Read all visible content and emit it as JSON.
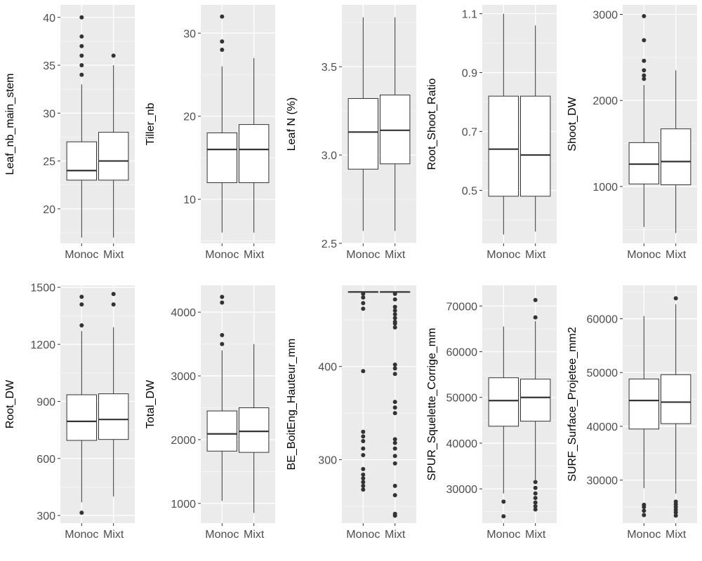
{
  "chart_data": [
    {
      "type": "boxplot",
      "ylabel": "Leaf_nb_main_stem",
      "ylim": [
        16.4,
        41.3
      ],
      "yticks": [
        20,
        25,
        30,
        35,
        40
      ],
      "ytick_labels": [
        "20",
        "25",
        "30",
        "35",
        "40"
      ],
      "categories": [
        "Monoc",
        "Mixt"
      ],
      "boxes": [
        {
          "q1": 23,
          "median": 24,
          "q3": 27,
          "whisker_low": 17,
          "whisker_high": 33,
          "outliers": [
            34,
            35,
            36,
            37,
            38,
            40
          ]
        },
        {
          "q1": 23,
          "median": 25,
          "q3": 28,
          "whisker_low": 17,
          "whisker_high": 35,
          "outliers": [
            36
          ]
        }
      ]
    },
    {
      "type": "boxplot",
      "ylabel": "Tiller_nb",
      "ylim": [
        4.7,
        33.4
      ],
      "yticks": [
        10,
        20,
        30
      ],
      "ytick_labels": [
        "10",
        "20",
        "30"
      ],
      "categories": [
        "Monoc",
        "Mixt"
      ],
      "boxes": [
        {
          "q1": 12,
          "median": 16,
          "q3": 18,
          "whisker_low": 6,
          "whisker_high": 26,
          "outliers": [
            28,
            29,
            32
          ]
        },
        {
          "q1": 12,
          "median": 16,
          "q3": 19,
          "whisker_low": 6,
          "whisker_high": 27,
          "outliers": []
        }
      ]
    },
    {
      "type": "boxplot",
      "ylabel": "Leaf N (%)",
      "ylim": [
        2.5,
        3.85
      ],
      "yticks": [
        2.5,
        3.0,
        3.5
      ],
      "ytick_labels": [
        "2.5",
        "3.0",
        "3.5"
      ],
      "categories": [
        "Monoc",
        "Mixt"
      ],
      "boxes": [
        {
          "q1": 2.92,
          "median": 3.13,
          "q3": 3.32,
          "whisker_low": 2.57,
          "whisker_high": 3.78,
          "outliers": []
        },
        {
          "q1": 2.95,
          "median": 3.14,
          "q3": 3.34,
          "whisker_low": 2.57,
          "whisker_high": 3.78,
          "outliers": []
        }
      ]
    },
    {
      "type": "boxplot",
      "ylabel": "Root_Shoot_Ratio",
      "ylim": [
        0.32,
        1.13
      ],
      "yticks": [
        0.5,
        0.7,
        0.9,
        1.1
      ],
      "ytick_labels": [
        "0.5",
        "0.7",
        "0.9",
        "1.1"
      ],
      "categories": [
        "Monoc",
        "Mixt"
      ],
      "boxes": [
        {
          "q1": 0.48,
          "median": 0.64,
          "q3": 0.82,
          "whisker_low": 0.35,
          "whisker_high": 1.1,
          "outliers": []
        },
        {
          "q1": 0.48,
          "median": 0.62,
          "q3": 0.82,
          "whisker_low": 0.36,
          "whisker_high": 1.06,
          "outliers": []
        }
      ]
    },
    {
      "type": "boxplot",
      "ylabel": "Shoot_DW",
      "ylim": [
        340,
        3110
      ],
      "yticks": [
        1000,
        2000,
        3000
      ],
      "ytick_labels": [
        "1000",
        "2000",
        "3000"
      ],
      "categories": [
        "Monoc",
        "Mixt"
      ],
      "boxes": [
        {
          "q1": 1030,
          "median": 1260,
          "q3": 1510,
          "whisker_low": 530,
          "whisker_high": 2180,
          "outliers": [
            2250,
            2290,
            2350,
            2460,
            2700,
            2980
          ]
        },
        {
          "q1": 1020,
          "median": 1290,
          "q3": 1670,
          "whisker_low": 460,
          "whisker_high": 2350,
          "outliers": []
        }
      ]
    },
    {
      "type": "boxplot",
      "ylabel": "Root_DW",
      "ylim": [
        260,
        1510
      ],
      "yticks": [
        300,
        600,
        900,
        1200,
        1500
      ],
      "ytick_labels": [
        "300",
        "600",
        "900",
        "1200",
        "1500"
      ],
      "categories": [
        "Monoc",
        "Mixt"
      ],
      "boxes": [
        {
          "q1": 695,
          "median": 795,
          "q3": 935,
          "whisker_low": 370,
          "whisker_high": 1270,
          "outliers": [
            315,
            1300,
            1410,
            1450
          ]
        },
        {
          "q1": 700,
          "median": 805,
          "q3": 940,
          "whisker_low": 400,
          "whisker_high": 1290,
          "outliers": [
            1410,
            1465
          ]
        }
      ]
    },
    {
      "type": "boxplot",
      "ylabel": "Total_DW",
      "ylim": [
        690,
        4420
      ],
      "yticks": [
        1000,
        2000,
        3000,
        4000
      ],
      "ytick_labels": [
        "1000",
        "2000",
        "3000",
        "4000"
      ],
      "categories": [
        "Monoc",
        "Mixt"
      ],
      "boxes": [
        {
          "q1": 1820,
          "median": 2090,
          "q3": 2450,
          "whisker_low": 1040,
          "whisker_high": 3400,
          "outliers": [
            3500,
            3640,
            4150,
            4240
          ]
        },
        {
          "q1": 1800,
          "median": 2130,
          "q3": 2500,
          "whisker_low": 850,
          "whisker_high": 3500,
          "outliers": []
        }
      ]
    },
    {
      "type": "boxplot",
      "ylabel": "BE_BoitEng_Hauteur_mm",
      "ylim": [
        232,
        487
      ],
      "yticks": [
        300,
        400
      ],
      "ytick_labels": [
        "300",
        "400"
      ],
      "categories": [
        "Monoc",
        "Mixt"
      ],
      "boxes": [
        {
          "q1": 480,
          "median": 480,
          "q3": 480,
          "whisker_low": 480,
          "whisker_high": 480,
          "outliers": [
            268,
            272,
            276,
            280,
            284,
            290,
            305,
            312,
            320,
            325,
            330,
            395,
            462,
            468,
            474,
            478
          ]
        },
        {
          "q1": 480,
          "median": 480,
          "q3": 480,
          "whisker_low": 480,
          "whisker_high": 480,
          "outliers": [
            240,
            242,
            262,
            272,
            296,
            304,
            312,
            318,
            322,
            350,
            356,
            362,
            392,
            398,
            402,
            442,
            446,
            448,
            452,
            456,
            460,
            464,
            472,
            478
          ]
        }
      ]
    },
    {
      "type": "boxplot",
      "ylabel": "SPUR_Squelette_Corrige_mm",
      "ylim": [
        22500,
        74500
      ],
      "yticks": [
        30000,
        40000,
        50000,
        60000,
        70000
      ],
      "ytick_labels": [
        "30000",
        "40000",
        "50000",
        "60000",
        "70000"
      ],
      "categories": [
        "Monoc",
        "Mixt"
      ],
      "boxes": [
        {
          "q1": 43700,
          "median": 49300,
          "q3": 54300,
          "whisker_low": 29000,
          "whisker_high": 65500,
          "outliers": [
            24000,
            27200
          ]
        },
        {
          "q1": 44800,
          "median": 50000,
          "q3": 54000,
          "whisker_low": 32000,
          "whisker_high": 66700,
          "outliers": [
            25500,
            26200,
            27000,
            28000,
            29000,
            30200,
            31500,
            67500,
            71300
          ]
        }
      ]
    },
    {
      "type": "boxplot",
      "ylabel": "SURF_Surface_Projetee_mm2",
      "ylim": [
        22000,
        66200
      ],
      "yticks": [
        30000,
        40000,
        50000,
        60000
      ],
      "ytick_labels": [
        "30000",
        "40000",
        "50000",
        "60000"
      ],
      "categories": [
        "Monoc",
        "Mixt"
      ],
      "boxes": [
        {
          "q1": 39500,
          "median": 44800,
          "q3": 48800,
          "whisker_low": 28500,
          "whisker_high": 60500,
          "outliers": [
            23500,
            24300,
            25000,
            25400
          ]
        },
        {
          "q1": 40500,
          "median": 44500,
          "q3": 49600,
          "whisker_low": 27500,
          "whisker_high": 62700,
          "outliers": [
            23400,
            24000,
            24500,
            25000,
            25500,
            26000,
            63800
          ]
        }
      ]
    }
  ]
}
